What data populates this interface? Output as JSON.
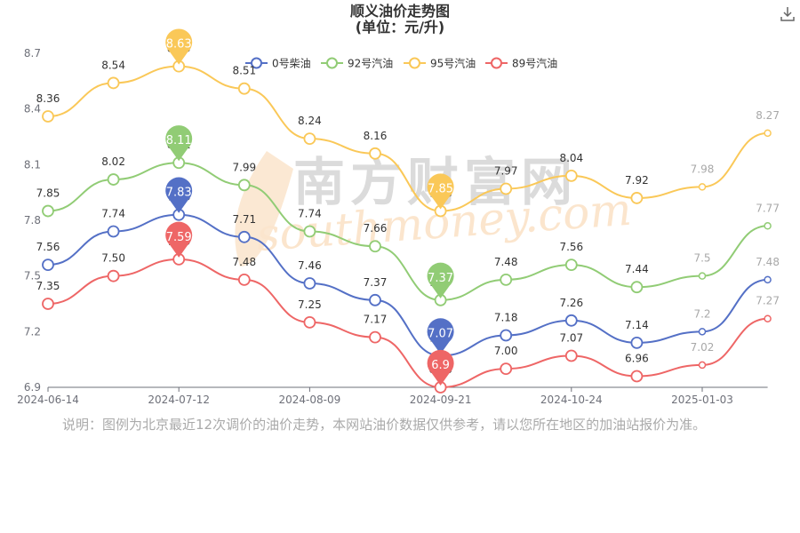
{
  "chart_data": {
    "type": "line",
    "title": "顺义油价走势图",
    "subtitle": "(单位：元/升)",
    "x_ticks": [
      "2024-06-14",
      "2024-07-12",
      "2024-08-09",
      "2024-09-21",
      "2024-10-24",
      "2025-01-03"
    ],
    "y_ticks": [
      "6.9",
      "7.2",
      "7.5",
      "7.8",
      "8.1",
      "8.4",
      "8.7"
    ],
    "ylim": [
      6.9,
      8.7
    ],
    "grid": false,
    "legend_position": "top-center",
    "series": [
      {
        "name": "0号柴油",
        "color": "#5470c6",
        "values": [
          7.56,
          7.74,
          7.83,
          7.71,
          7.46,
          7.37,
          7.07,
          7.18,
          7.26,
          7.14,
          7.2,
          7.48
        ],
        "labels": [
          "7.56",
          "7.74",
          "7.83",
          "7.71",
          "7.46",
          "7.37",
          "7.07",
          "7.18",
          "7.26",
          "7.14",
          "7.2",
          "7.48"
        ],
        "max_value": "7.83",
        "min_value": "7.07"
      },
      {
        "name": "92号汽油",
        "color": "#91cc75",
        "values": [
          7.85,
          8.02,
          8.11,
          7.99,
          7.74,
          7.66,
          7.37,
          7.48,
          7.56,
          7.44,
          7.5,
          7.77
        ],
        "labels": [
          "7.85",
          "8.02",
          "8.11",
          "7.99",
          "7.74",
          "7.66",
          "7.37",
          "7.48",
          "7.56",
          "7.44",
          "7.5",
          "7.77"
        ],
        "max_value": "8.11",
        "min_value": "7.37"
      },
      {
        "name": "95号汽油",
        "color": "#fac858",
        "values": [
          8.36,
          8.54,
          8.63,
          8.51,
          8.24,
          8.16,
          7.85,
          7.97,
          8.04,
          7.92,
          7.98,
          8.27
        ],
        "labels": [
          "8.36",
          "8.54",
          "8.63",
          "8.51",
          "8.24",
          "8.16",
          "7.85",
          "7.97",
          "8.04",
          "7.92",
          "7.98",
          "8.27"
        ],
        "max_value": "8.63",
        "min_value": "7.85"
      },
      {
        "name": "89号汽油",
        "color": "#ee6666",
        "values": [
          7.35,
          7.5,
          7.59,
          7.48,
          7.25,
          7.17,
          6.9,
          7.0,
          7.07,
          6.96,
          7.02,
          7.27
        ],
        "labels": [
          "7.35",
          "7.50",
          "7.59",
          "7.48",
          "7.25",
          "7.17",
          "6.90",
          "7.00",
          "7.07",
          "6.96",
          "7.02",
          "7.27"
        ],
        "max_value": "7.59",
        "min_value": "6.9"
      }
    ]
  },
  "watermark": {
    "cn": "南方财富网",
    "en": "southmoney.com"
  },
  "footnote": "说明：图例为北京最近12次调价的油价走势，本网站油价数据仅供参考，请以您所在地区的加油站报价为准。",
  "icons": {
    "download": "download-icon"
  }
}
